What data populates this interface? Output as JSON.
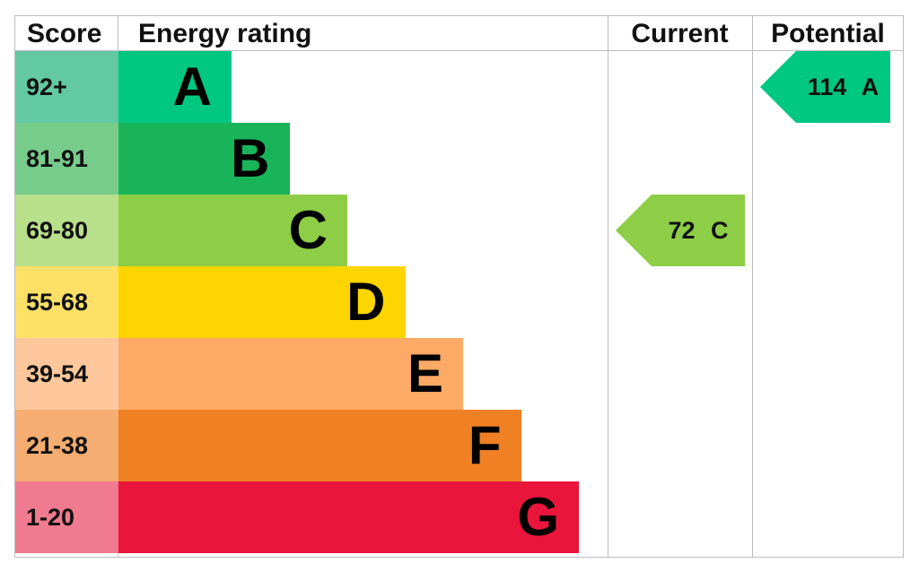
{
  "headers": {
    "score": "Score",
    "energy_rating": "Energy rating",
    "current": "Current",
    "potential": "Potential"
  },
  "chart_data": {
    "type": "bar",
    "bands": [
      {
        "score": "92+",
        "letter": "A",
        "color": "#00c781",
        "score_bg": "#63c9a5"
      },
      {
        "score": "81-91",
        "letter": "B",
        "color": "#19b459",
        "score_bg": "#77cc8b"
      },
      {
        "score": "69-80",
        "letter": "C",
        "color": "#8dce46",
        "score_bg": "#b8e08b"
      },
      {
        "score": "55-68",
        "letter": "D",
        "color": "#ffd500",
        "score_bg": "#ffe066"
      },
      {
        "score": "39-54",
        "letter": "E",
        "color": "#fcaa65",
        "score_bg": "#fec89c"
      },
      {
        "score": "21-38",
        "letter": "F",
        "color": "#ef8023",
        "score_bg": "#f5ad71"
      },
      {
        "score": "1-20",
        "letter": "G",
        "color": "#e9153b",
        "score_bg": "#f07a8f"
      }
    ],
    "current": {
      "value": 72,
      "letter": "C",
      "text": "72 C",
      "color": "#8dce46"
    },
    "potential": {
      "value": 114,
      "letter": "A",
      "text": "114 A",
      "color": "#00c781"
    }
  }
}
